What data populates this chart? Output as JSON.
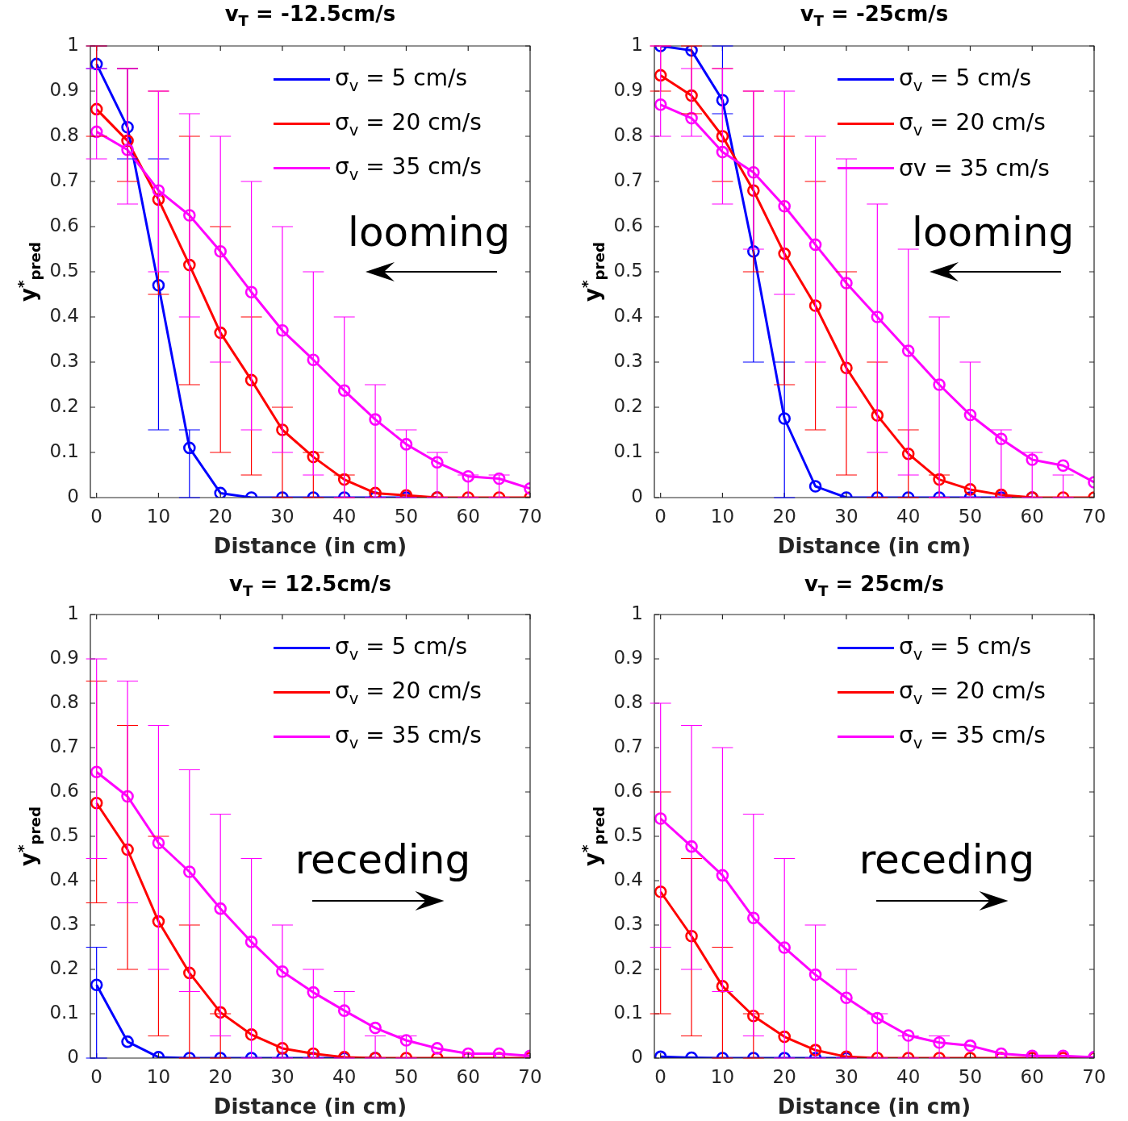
{
  "chart_data": [
    {
      "type": "line",
      "title": "v$_{T}$ = -12.5cm/s",
      "xlabel": "Distance (in cm)",
      "ylabel": "y$^{*}$$_{pred}$",
      "annotations": [
        "looming"
      ],
      "legend": "top right",
      "marker": "circle",
      "x": [
        0,
        5,
        10,
        15,
        20,
        25,
        30,
        35,
        40,
        45,
        50,
        55,
        60,
        65,
        70
      ],
      "xlim": [
        -1,
        70
      ],
      "xticks": [
        0,
        10,
        20,
        30,
        40,
        50,
        60,
        70
      ],
      "ylim": [
        0,
        1
      ],
      "yticks": [
        0,
        0.1,
        0.2,
        0.3,
        0.4,
        0.5,
        0.6,
        0.7,
        0.8,
        0.9,
        1
      ],
      "series": [
        {
          "name": "σ$_{v}$ = 5 cm/s",
          "color": "#0000ff",
          "values": [
            0.96,
            0.82,
            0.47,
            0.11,
            0.01,
            0,
            0,
            0,
            0,
            0,
            0,
            0,
            null,
            null,
            null
          ],
          "errors": [
            [
              0.95,
              1
            ],
            [
              0.75,
              0.95
            ],
            [
              0.15,
              0.75
            ],
            [
              0,
              0.15
            ],
            null,
            null,
            null,
            null,
            null,
            null,
            null,
            null,
            null,
            null,
            null
          ]
        },
        {
          "name": "σ$_{v}$ = 20 cm/s",
          "color": "#ff0000",
          "values": [
            0.86,
            0.79,
            0.66,
            0.515,
            0.365,
            0.26,
            0.15,
            0.09,
            0.04,
            0.01,
            0.005,
            0,
            0,
            0,
            0
          ],
          "errors": [
            [
              0.8,
              1
            ],
            [
              0.7,
              0.95
            ],
            [
              0.45,
              0.9
            ],
            [
              0.25,
              0.8
            ],
            [
              0.1,
              0.6
            ],
            [
              0.05,
              0.4
            ],
            [
              0,
              0.2
            ],
            [
              0,
              0.1
            ],
            [
              0,
              0.05
            ],
            null,
            null,
            null,
            null,
            null,
            null
          ]
        },
        {
          "name": "σ$_{v}$ = 35 cm/s",
          "color": "#ff00ff",
          "values": [
            0.81,
            0.77,
            0.68,
            0.625,
            0.545,
            0.455,
            0.37,
            0.305,
            0.237,
            0.173,
            0.118,
            0.078,
            0.047,
            0.042,
            0.02
          ],
          "errors": [
            [
              0.75,
              0.95
            ],
            [
              0.65,
              0.95
            ],
            [
              0.5,
              0.9
            ],
            [
              0.4,
              0.85
            ],
            [
              0.3,
              0.8
            ],
            [
              0.15,
              0.7
            ],
            [
              0.1,
              0.6
            ],
            [
              0.05,
              0.5
            ],
            [
              0,
              0.4
            ],
            [
              0,
              0.25
            ],
            [
              0,
              0.15
            ],
            [
              0,
              0.1
            ],
            [
              0,
              0.05
            ],
            [
              0,
              0.05
            ],
            null
          ]
        }
      ]
    },
    {
      "type": "line",
      "title": "v$_{T}$ = -25cm/s",
      "xlabel": "Distance (in cm)",
      "ylabel": "y$^{*}$$_{pred}$",
      "annotations": [
        "looming"
      ],
      "legend": "top right",
      "marker": "circle",
      "x": [
        0,
        5,
        10,
        15,
        20,
        25,
        30,
        35,
        40,
        45,
        50,
        55,
        60,
        65,
        70
      ],
      "xlim": [
        -1,
        70
      ],
      "xticks": [
        0,
        10,
        20,
        30,
        40,
        50,
        60,
        70
      ],
      "ylim": [
        0,
        1
      ],
      "yticks": [
        0,
        0.1,
        0.2,
        0.3,
        0.4,
        0.5,
        0.6,
        0.7,
        0.8,
        0.9,
        1
      ],
      "series": [
        {
          "name": "σ$_{v}$ = 5 cm/s",
          "color": "#0000ff",
          "values": [
            1,
            0.99,
            0.88,
            0.545,
            0.175,
            0.025,
            0,
            0,
            0,
            0,
            0,
            0,
            0,
            null,
            null
          ],
          "errors": [
            null,
            null,
            [
              0.85,
              1
            ],
            [
              0.3,
              0.8
            ],
            [
              0,
              0.3
            ],
            null,
            null,
            null,
            null,
            null,
            null,
            null,
            null,
            null,
            null
          ]
        },
        {
          "name": "σ$_{v}$ = 20 cm/s",
          "color": "#ff0000",
          "values": [
            0.935,
            0.89,
            0.8,
            0.68,
            0.54,
            0.425,
            0.287,
            0.182,
            0.097,
            0.04,
            0.018,
            0.006,
            0,
            0,
            0
          ],
          "errors": [
            [
              0.9,
              1
            ],
            [
              0.85,
              1
            ],
            [
              0.7,
              0.95
            ],
            [
              0.5,
              0.9
            ],
            [
              0.25,
              0.8
            ],
            [
              0.15,
              0.7
            ],
            [
              0.05,
              0.5
            ],
            [
              0,
              0.3
            ],
            [
              0,
              0.15
            ],
            [
              0,
              0.05
            ],
            null,
            null,
            null,
            null,
            null
          ]
        },
        {
          "name": "σv = 35 cm/s",
          "color": "#ff00ff",
          "values": [
            0.87,
            0.84,
            0.765,
            0.72,
            0.645,
            0.56,
            0.475,
            0.4,
            0.325,
            0.25,
            0.183,
            0.13,
            0.084,
            0.071,
            0.034
          ],
          "errors": [
            [
              0.8,
              1
            ],
            [
              0.8,
              0.95
            ],
            [
              0.65,
              0.95
            ],
            [
              0.55,
              0.9
            ],
            [
              0.45,
              0.9
            ],
            [
              0.3,
              0.8
            ],
            [
              0.2,
              0.75
            ],
            [
              0.1,
              0.65
            ],
            [
              0.05,
              0.55
            ],
            [
              0,
              0.4
            ],
            [
              0,
              0.3
            ],
            [
              0,
              0.15
            ],
            [
              0,
              0.1
            ],
            [
              0,
              0.05
            ],
            null
          ]
        }
      ]
    },
    {
      "type": "line",
      "title": "v$_{T}$ = 12.5cm/s",
      "xlabel": "Distance (in cm)",
      "ylabel": "y$^{*}$$_{pred}$",
      "annotations": [
        "receding"
      ],
      "legend": "top right",
      "marker": "circle",
      "x": [
        0,
        5,
        10,
        15,
        20,
        25,
        30,
        35,
        40,
        45,
        50,
        55,
        60,
        65,
        70
      ],
      "xlim": [
        -1,
        70
      ],
      "xticks": [
        0,
        10,
        20,
        30,
        40,
        50,
        60,
        70
      ],
      "ylim": [
        0,
        1
      ],
      "yticks": [
        0,
        0.1,
        0.2,
        0.3,
        0.4,
        0.5,
        0.6,
        0.7,
        0.8,
        0.9,
        1
      ],
      "series": [
        {
          "name": "σ$_{v}$ = 5 cm/s",
          "color": "#0000ff",
          "values": [
            0.165,
            0.037,
            0.002,
            0,
            0,
            0,
            0,
            0,
            0,
            0,
            null,
            null,
            null,
            null,
            null
          ],
          "errors": [
            [
              0,
              0.25
            ],
            null,
            null,
            null,
            null,
            null,
            null,
            null,
            null,
            null,
            null,
            null,
            null,
            null,
            null
          ]
        },
        {
          "name": "σ$_{v}$ = 20 cm/s",
          "color": "#ff0000",
          "values": [
            0.575,
            0.47,
            0.308,
            0.192,
            0.103,
            0.053,
            0.022,
            0.01,
            0.002,
            0,
            0,
            0,
            0,
            0,
            0
          ],
          "errors": [
            [
              0.35,
              0.85
            ],
            [
              0.2,
              0.75
            ],
            [
              0.05,
              0.5
            ],
            [
              0,
              0.3
            ],
            [
              0,
              0.1
            ],
            null,
            null,
            null,
            null,
            null,
            null,
            null,
            null,
            null,
            null
          ]
        },
        {
          "name": "σ$_{v}$ = 35 cm/s",
          "color": "#ff00ff",
          "values": [
            0.645,
            0.59,
            0.485,
            0.42,
            0.337,
            0.262,
            0.195,
            0.148,
            0.107,
            0.068,
            0.04,
            0.022,
            0.01,
            0.01,
            0.005
          ],
          "errors": [
            [
              0.45,
              0.9
            ],
            [
              0.35,
              0.85
            ],
            [
              0.2,
              0.75
            ],
            [
              0.15,
              0.65
            ],
            [
              0.05,
              0.55
            ],
            [
              0,
              0.45
            ],
            [
              0,
              0.3
            ],
            [
              0,
              0.2
            ],
            [
              0,
              0.15
            ],
            [
              0,
              0.05
            ],
            [
              0,
              0.05
            ],
            null,
            null,
            null,
            null
          ]
        }
      ]
    },
    {
      "type": "line",
      "title": "v$_{T}$ = 25cm/s",
      "xlabel": "Distance (in cm)",
      "ylabel": "y$^{*}$$_{pred}$",
      "annotations": [
        "receding"
      ],
      "legend": "top right",
      "marker": "circle",
      "x": [
        0,
        5,
        10,
        15,
        20,
        25,
        30,
        35,
        40,
        45,
        50,
        55,
        60,
        65,
        70
      ],
      "xlim": [
        -1,
        70
      ],
      "xticks": [
        0,
        10,
        20,
        30,
        40,
        50,
        60,
        70
      ],
      "ylim": [
        0,
        1
      ],
      "yticks": [
        0,
        0.1,
        0.2,
        0.3,
        0.4,
        0.5,
        0.6,
        0.7,
        0.8,
        0.9,
        1
      ],
      "series": [
        {
          "name": "σ$_{v}$ = 5 cm/s",
          "color": "#0000ff",
          "values": [
            0.003,
            0.001,
            0,
            0,
            0,
            0,
            0,
            null,
            null,
            null,
            null,
            null,
            null,
            null,
            null
          ]
        },
        {
          "name": "σ$_{v}$ = 20 cm/s",
          "color": "#ff0000",
          "values": [
            0.375,
            0.275,
            0.162,
            0.095,
            0.048,
            0.018,
            0.003,
            0,
            0,
            0,
            0,
            0,
            0,
            0,
            0
          ],
          "errors": [
            [
              0.1,
              0.6
            ],
            [
              0.05,
              0.45
            ],
            [
              0,
              0.25
            ],
            [
              0,
              0.1
            ],
            null,
            null,
            null,
            null,
            null,
            null,
            null,
            null,
            null,
            null,
            null
          ]
        },
        {
          "name": "σ$_{v}$ = 35 cm/s",
          "color": "#ff00ff",
          "values": [
            0.54,
            0.477,
            0.412,
            0.316,
            0.249,
            0.188,
            0.136,
            0.09,
            0.051,
            0.035,
            0.028,
            0.01,
            0.005,
            0.005,
            0.002
          ],
          "errors": [
            [
              0.25,
              0.8
            ],
            [
              0.2,
              0.75
            ],
            [
              0.15,
              0.7
            ],
            [
              0.05,
              0.55
            ],
            [
              0,
              0.45
            ],
            [
              0,
              0.3
            ],
            [
              0,
              0.2
            ],
            [
              0,
              0.1
            ],
            [
              0,
              0.05
            ],
            [
              0,
              0.05
            ],
            null,
            null,
            null,
            null,
            null
          ]
        }
      ]
    }
  ]
}
